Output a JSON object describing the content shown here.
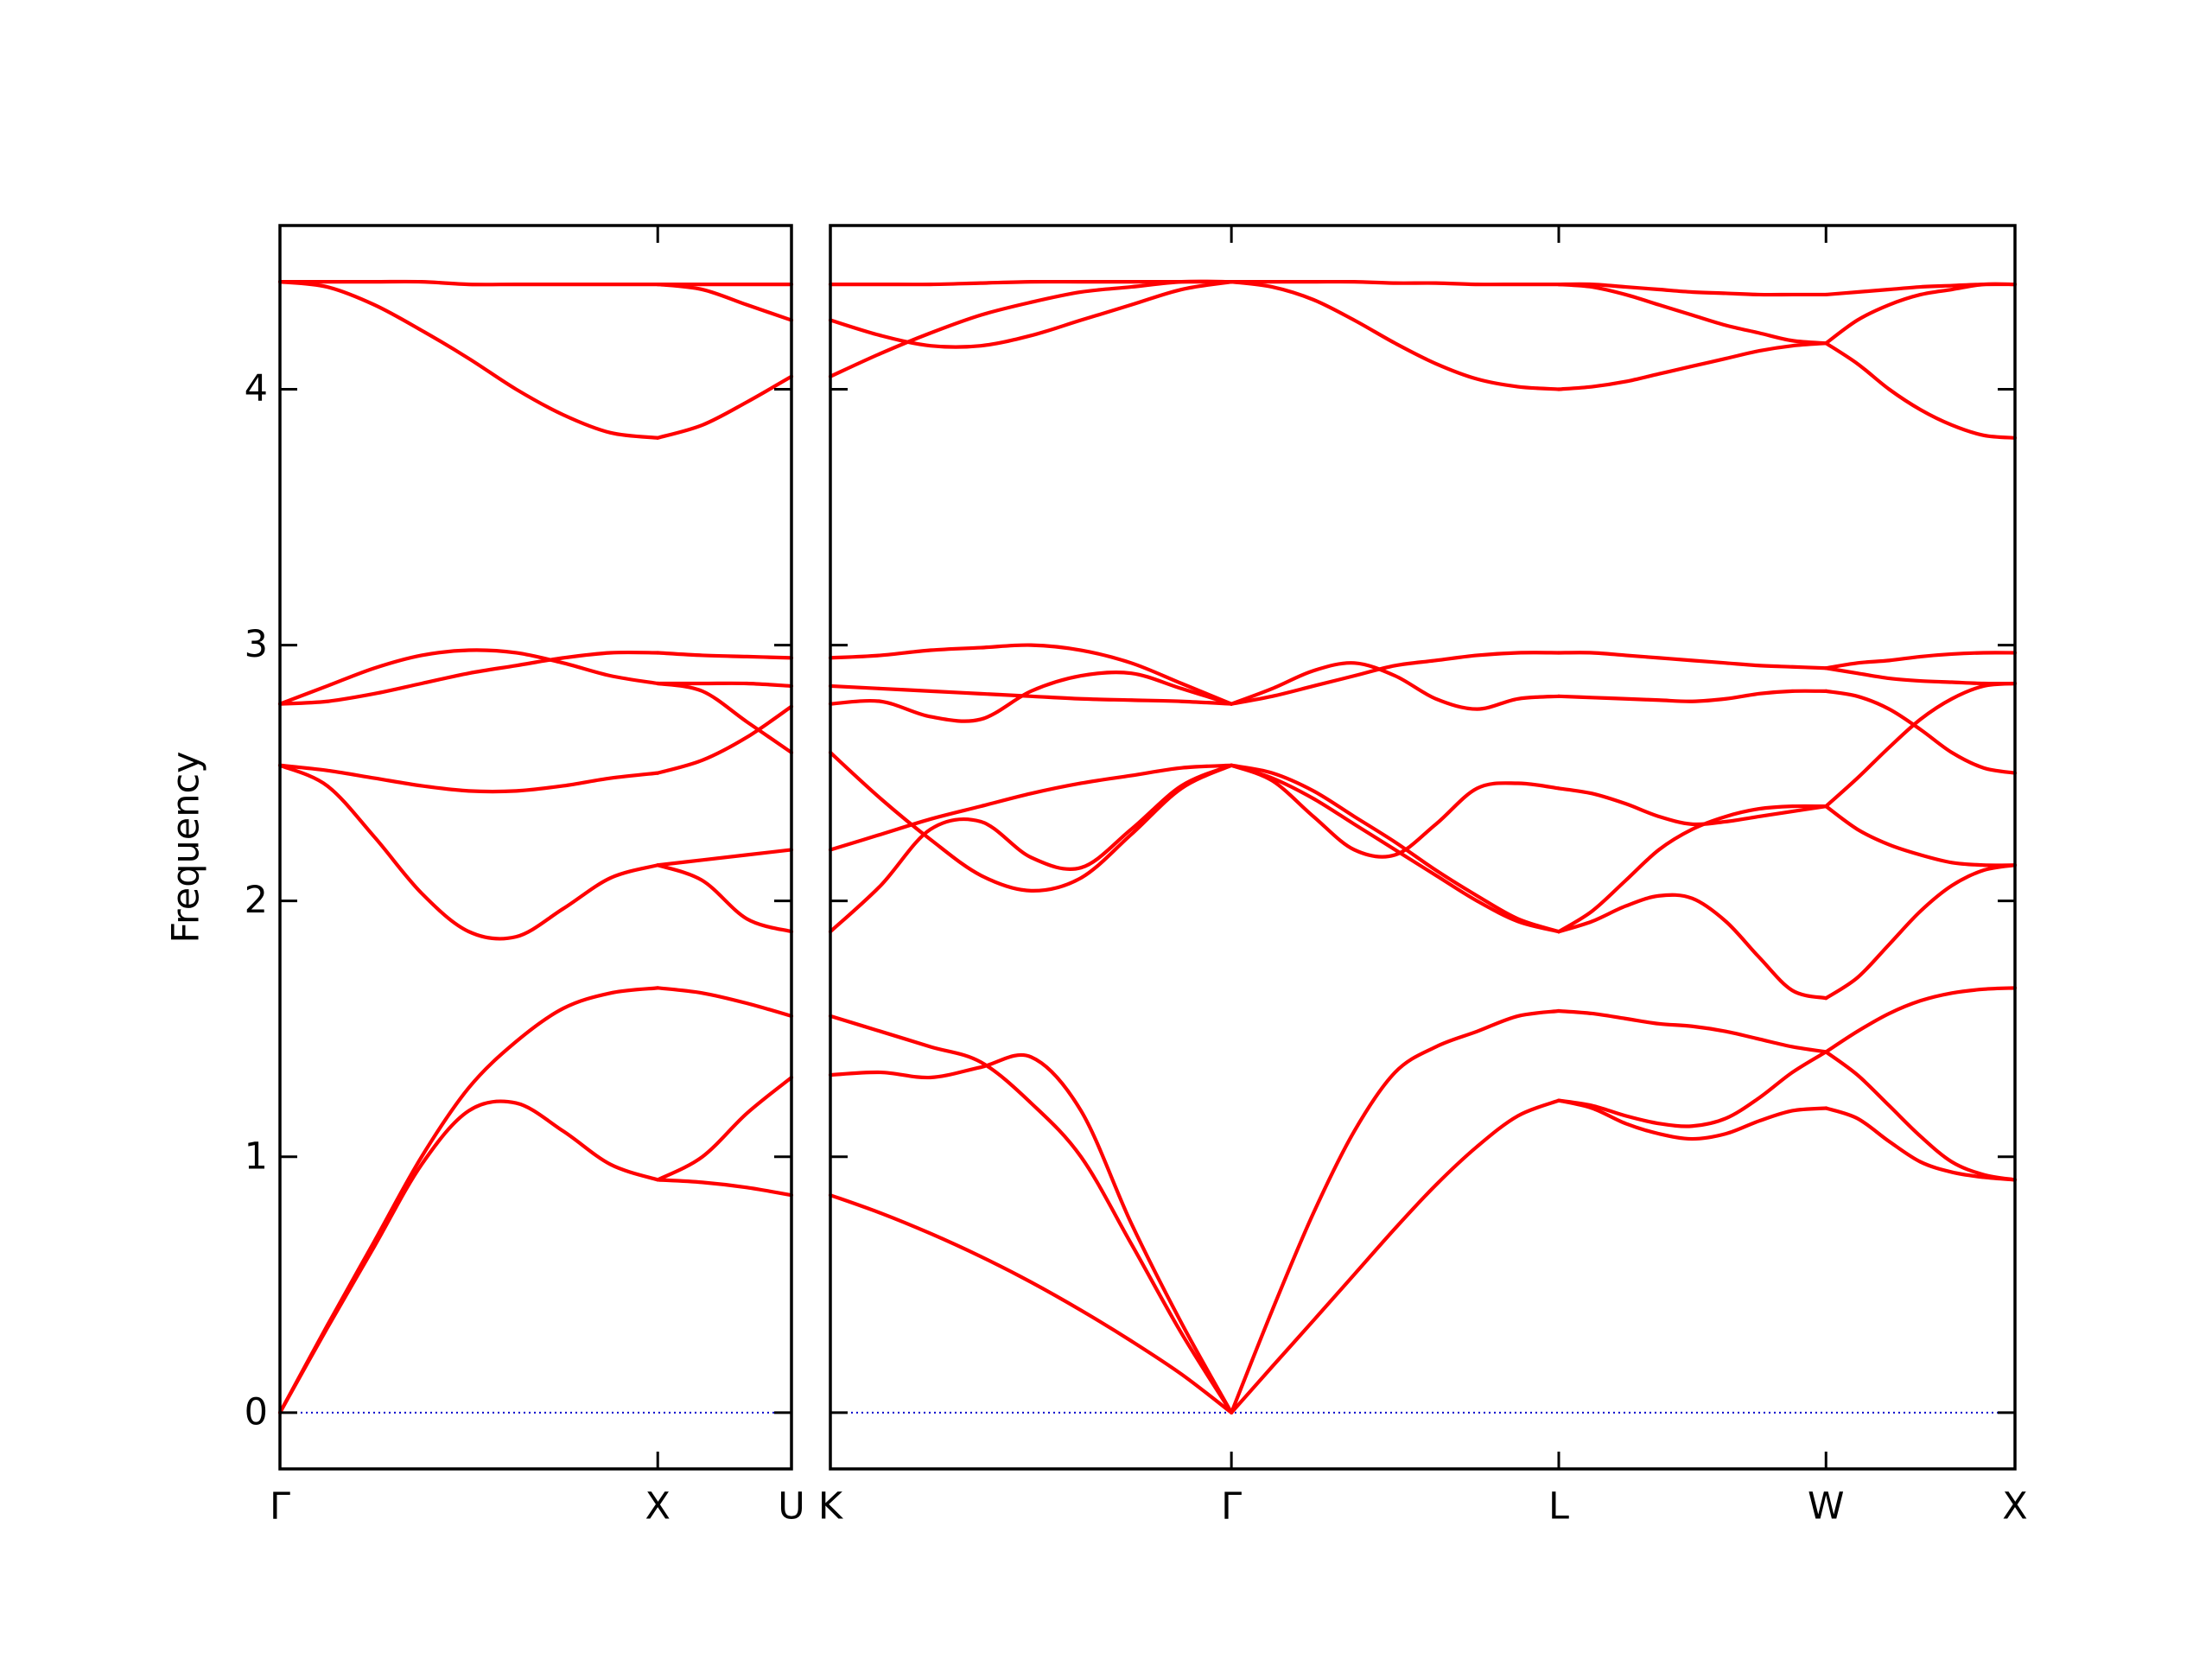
{
  "chart_data": [
    {
      "type": "line",
      "ylabel": "Frequency",
      "color": "#ff0000",
      "xlim": [
        0,
        1.354
      ],
      "ylim": [
        -0.22,
        4.64
      ],
      "xticks": [
        {
          "value": 0,
          "label": "Γ"
        },
        {
          "value": 1,
          "label": "X"
        },
        {
          "value": 1.354,
          "label": "U"
        }
      ],
      "yticks": [
        0,
        1,
        2,
        3,
        4
      ],
      "ytick_labels": true,
      "hline": {
        "value": 0,
        "color": "#0000cc",
        "style": "dotted"
      },
      "segments": [
        {
          "x": [
            0,
            0.125,
            0.25,
            0.375,
            0.5,
            0.625,
            0.75,
            0.875,
            1
          ],
          "lines": [
            [
              0,
              0.33,
              0.65,
              0.97,
              1.18,
              1.21,
              1.1,
              0.97,
              0.91
            ],
            [
              0,
              0.34,
              0.67,
              1.0,
              1.27,
              1.45,
              1.58,
              1.64,
              1.66
            ],
            [
              2.53,
              2.45,
              2.25,
              2.03,
              1.88,
              1.86,
              1.97,
              2.09,
              2.14
            ],
            [
              2.53,
              2.51,
              2.48,
              2.45,
              2.43,
              2.43,
              2.45,
              2.48,
              2.5
            ],
            [
              2.77,
              2.84,
              2.91,
              2.96,
              2.98,
              2.97,
              2.93,
              2.88,
              2.85
            ],
            [
              2.77,
              2.78,
              2.81,
              2.85,
              2.89,
              2.92,
              2.95,
              2.97,
              2.97
            ],
            [
              4.42,
              4.4,
              4.33,
              4.23,
              4.12,
              4.0,
              3.9,
              3.83,
              3.81
            ],
            [
              4.42,
              4.42,
              4.42,
              4.42,
              4.41,
              4.41,
              4.41,
              4.41,
              4.41
            ]
          ]
        },
        {
          "x": [
            1,
            1.118,
            1.236,
            1.354
          ],
          "lines": [
            [
              0.91,
              0.9,
              0.88,
              0.85
            ],
            [
              0.91,
              1.0,
              1.17,
              1.31
            ],
            [
              1.66,
              1.64,
              1.6,
              1.55
            ],
            [
              2.14,
              2.08,
              1.93,
              1.88
            ],
            [
              2.14,
              2.16,
              2.18,
              2.2
            ],
            [
              2.5,
              2.55,
              2.64,
              2.76
            ],
            [
              2.85,
              2.82,
              2.7,
              2.58
            ],
            [
              2.85,
              2.85,
              2.85,
              2.84
            ],
            [
              2.97,
              2.96,
              2.955,
              2.95
            ],
            [
              3.81,
              3.86,
              3.95,
              4.05
            ],
            [
              4.41,
              4.39,
              4.33,
              4.27
            ],
            [
              4.41,
              4.41,
              4.41,
              4.41
            ]
          ]
        }
      ]
    },
    {
      "type": "line",
      "color": "#ff0000",
      "xlim": [
        1.354,
        4.488
      ],
      "ylim": [
        -0.22,
        4.64
      ],
      "xticks": [
        {
          "value": 1.354,
          "label": "K"
        },
        {
          "value": 2.415,
          "label": "Γ"
        },
        {
          "value": 3.281,
          "label": "L"
        },
        {
          "value": 3.988,
          "label": "W"
        },
        {
          "value": 4.488,
          "label": "X"
        }
      ],
      "yticks": [
        0,
        1,
        2,
        3,
        4
      ],
      "ytick_labels": false,
      "hline": {
        "value": 0,
        "color": "#0000cc",
        "style": "dotted"
      },
      "segments": [
        {
          "x": [
            1.354,
            1.487,
            1.619,
            1.752,
            1.885,
            2.017,
            2.15,
            2.283,
            2.415
          ],
          "lines": [
            [
              0.85,
              0.78,
              0.7,
              0.61,
              0.51,
              0.4,
              0.28,
              0.15,
              0
            ],
            [
              1.55,
              1.49,
              1.43,
              1.37,
              1.21,
              1.0,
              0.66,
              0.31,
              0
            ],
            [
              1.32,
              1.33,
              1.31,
              1.35,
              1.39,
              1.18,
              0.74,
              0.35,
              0
            ],
            [
              1.88,
              2.06,
              2.28,
              2.31,
              2.17,
              2.13,
              2.28,
              2.45,
              2.53
            ],
            [
              2.2,
              2.26,
              2.32,
              2.37,
              2.42,
              2.46,
              2.49,
              2.52,
              2.53
            ],
            [
              2.58,
              2.4,
              2.24,
              2.1,
              2.04,
              2.09,
              2.26,
              2.44,
              2.53
            ],
            [
              2.77,
              2.78,
              2.72,
              2.71,
              2.82,
              2.88,
              2.89,
              2.83,
              2.77
            ],
            [
              2.84,
              2.83,
              2.82,
              2.81,
              2.8,
              2.79,
              2.785,
              2.78,
              2.77
            ],
            [
              2.95,
              2.96,
              2.98,
              2.99,
              3.0,
              2.98,
              2.93,
              2.85,
              2.77
            ],
            [
              4.05,
              4.14,
              4.22,
              4.29,
              4.34,
              4.38,
              4.4,
              4.42,
              4.42
            ],
            [
              4.27,
              4.21,
              4.17,
              4.17,
              4.21,
              4.27,
              4.33,
              4.39,
              4.42
            ],
            [
              4.41,
              4.41,
              4.41,
              4.415,
              4.42,
              4.42,
              4.42,
              4.42,
              4.42
            ]
          ]
        },
        {
          "x": [
            2.415,
            2.523,
            2.632,
            2.74,
            2.848,
            2.956,
            3.065,
            3.173,
            3.281
          ],
          "lines": [
            [
              0,
              0.18,
              0.36,
              0.54,
              0.72,
              0.89,
              1.04,
              1.16,
              1.22
            ],
            [
              0,
              0.4,
              0.78,
              1.1,
              1.33,
              1.43,
              1.49,
              1.55,
              1.57
            ],
            [
              2.53,
              2.47,
              2.33,
              2.2,
              2.18,
              2.3,
              2.44,
              2.46,
              2.44
            ],
            [
              2.53,
              2.48,
              2.4,
              2.3,
              2.2,
              2.1,
              2.0,
              1.92,
              1.88
            ],
            [
              2.53,
              2.5,
              2.43,
              2.33,
              2.23,
              2.12,
              2.02,
              1.93,
              1.88
            ],
            [
              2.77,
              2.83,
              2.9,
              2.93,
              2.88,
              2.79,
              2.75,
              2.79,
              2.8
            ],
            [
              2.77,
              2.8,
              2.84,
              2.88,
              2.92,
              2.94,
              2.96,
              2.97,
              2.97
            ],
            [
              4.42,
              4.4,
              4.35,
              4.27,
              4.18,
              4.1,
              4.04,
              4.01,
              4.0
            ],
            [
              4.42,
              4.42,
              4.42,
              4.42,
              4.415,
              4.415,
              4.41,
              4.41,
              4.41
            ]
          ]
        },
        {
          "x": [
            3.281,
            3.369,
            3.458,
            3.546,
            3.634,
            3.723,
            3.811,
            3.899,
            3.988
          ],
          "lines": [
            [
              1.22,
              1.19,
              1.13,
              1.09,
              1.07,
              1.09,
              1.14,
              1.18,
              1.19
            ],
            [
              1.22,
              1.2,
              1.16,
              1.13,
              1.12,
              1.15,
              1.23,
              1.33,
              1.41
            ],
            [
              1.57,
              1.56,
              1.54,
              1.52,
              1.51,
              1.49,
              1.46,
              1.43,
              1.41
            ],
            [
              1.88,
              1.92,
              1.98,
              2.02,
              2.01,
              1.92,
              1.78,
              1.65,
              1.62
            ],
            [
              1.88,
              1.96,
              2.08,
              2.2,
              2.28,
              2.33,
              2.36,
              2.37,
              2.37
            ],
            [
              2.44,
              2.42,
              2.38,
              2.33,
              2.3,
              2.31,
              2.33,
              2.35,
              2.37
            ],
            [
              2.8,
              2.795,
              2.79,
              2.785,
              2.78,
              2.79,
              2.81,
              2.82,
              2.82
            ],
            [
              2.97,
              2.97,
              2.96,
              2.95,
              2.94,
              2.93,
              2.92,
              2.915,
              2.91
            ],
            [
              4.0,
              4.01,
              4.03,
              4.06,
              4.09,
              4.12,
              4.15,
              4.17,
              4.18
            ],
            [
              4.41,
              4.4,
              4.37,
              4.33,
              4.29,
              4.25,
              4.22,
              4.19,
              4.18
            ],
            [
              4.41,
              4.41,
              4.4,
              4.39,
              4.38,
              4.375,
              4.37,
              4.37,
              4.37
            ]
          ]
        },
        {
          "x": [
            3.988,
            4.071,
            4.155,
            4.238,
            4.321,
            4.405,
            4.488
          ],
          "lines": [
            [
              1.19,
              1.15,
              1.06,
              0.98,
              0.94,
              0.92,
              0.91
            ],
            [
              1.41,
              1.32,
              1.2,
              1.08,
              0.98,
              0.93,
              0.91
            ],
            [
              1.41,
              1.49,
              1.56,
              1.61,
              1.64,
              1.655,
              1.66
            ],
            [
              1.62,
              1.7,
              1.83,
              1.96,
              2.06,
              2.12,
              2.14
            ],
            [
              2.37,
              2.28,
              2.22,
              2.18,
              2.15,
              2.14,
              2.14
            ],
            [
              2.37,
              2.48,
              2.6,
              2.71,
              2.79,
              2.84,
              2.85
            ],
            [
              2.82,
              2.8,
              2.75,
              2.67,
              2.58,
              2.52,
              2.5
            ],
            [
              2.91,
              2.89,
              2.87,
              2.86,
              2.855,
              2.85,
              2.85
            ],
            [
              2.91,
              2.93,
              2.94,
              2.955,
              2.965,
              2.97,
              2.97
            ],
            [
              4.18,
              4.1,
              4.0,
              3.92,
              3.86,
              3.82,
              3.81
            ],
            [
              4.18,
              4.27,
              4.33,
              4.37,
              4.39,
              4.41,
              4.41
            ],
            [
              4.37,
              4.38,
              4.39,
              4.4,
              4.405,
              4.41,
              4.41
            ]
          ]
        }
      ]
    }
  ]
}
